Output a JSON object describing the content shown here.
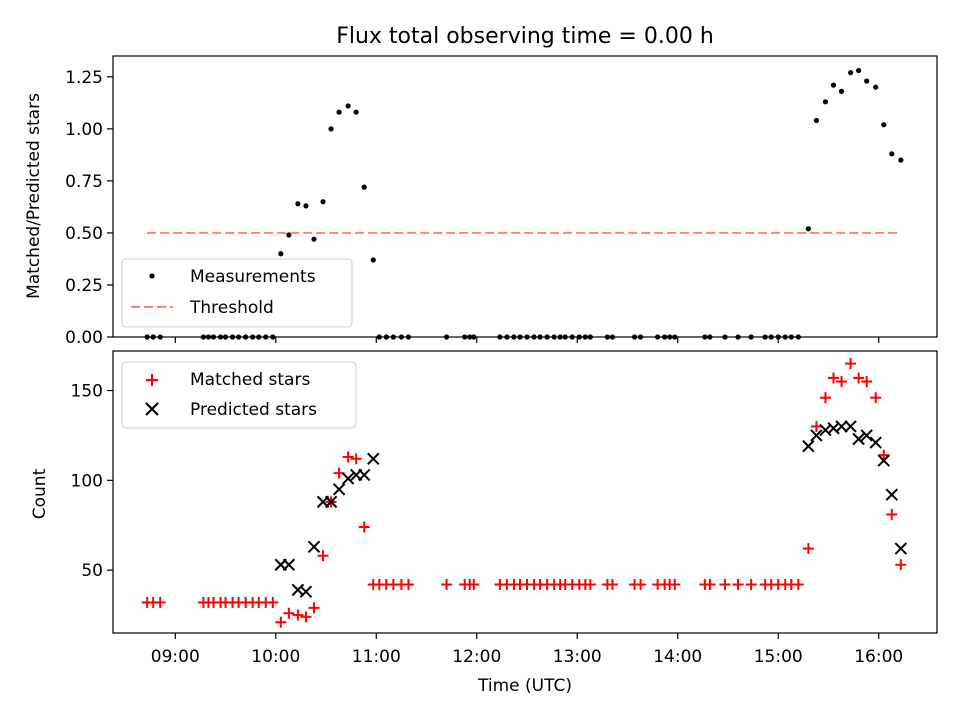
{
  "chart_data": [
    {
      "type": "scatter",
      "title": "Flux total observing time = 0.00 h",
      "xlabel": "",
      "ylabel": "Matched/Predicted stars",
      "xlim": [
        8.38,
        16.58
      ],
      "ylim": [
        0.0,
        1.35
      ],
      "x_ticks": [
        9,
        10,
        11,
        12,
        13,
        14,
        15,
        16
      ],
      "x_tick_labels": [
        "09:00",
        "10:00",
        "11:00",
        "12:00",
        "13:00",
        "14:00",
        "15:00",
        "16:00"
      ],
      "y_ticks": [
        0.0,
        0.25,
        0.5,
        0.75,
        1.0,
        1.25
      ],
      "y_tick_labels": [
        "0.00",
        "0.25",
        "0.50",
        "0.75",
        "1.00",
        "1.25"
      ],
      "legend": {
        "position": "lower-left",
        "entries": [
          "Measurements",
          "Threshold"
        ]
      },
      "series": [
        {
          "name": "Measurements",
          "color": "#000000",
          "marker": "dot",
          "points": [
            [
              8.72,
              0
            ],
            [
              8.78,
              0
            ],
            [
              8.85,
              0
            ],
            [
              9.28,
              0
            ],
            [
              9.33,
              0
            ],
            [
              9.38,
              0
            ],
            [
              9.45,
              0
            ],
            [
              9.5,
              0
            ],
            [
              9.57,
              0
            ],
            [
              9.63,
              0
            ],
            [
              9.7,
              0
            ],
            [
              9.77,
              0
            ],
            [
              9.83,
              0
            ],
            [
              9.9,
              0
            ],
            [
              9.97,
              0
            ],
            [
              10.05,
              0.4
            ],
            [
              10.13,
              0.49
            ],
            [
              10.22,
              0.64
            ],
            [
              10.3,
              0.63
            ],
            [
              10.38,
              0.47
            ],
            [
              10.47,
              0.65
            ],
            [
              10.55,
              1.0
            ],
            [
              10.63,
              1.08
            ],
            [
              10.72,
              1.11
            ],
            [
              10.8,
              1.08
            ],
            [
              10.88,
              0.72
            ],
            [
              10.97,
              0.37
            ],
            [
              11.03,
              0
            ],
            [
              11.1,
              0
            ],
            [
              11.17,
              0
            ],
            [
              11.25,
              0
            ],
            [
              11.32,
              0
            ],
            [
              11.7,
              0
            ],
            [
              11.88,
              0
            ],
            [
              11.93,
              0
            ],
            [
              11.97,
              0
            ],
            [
              12.23,
              0
            ],
            [
              12.3,
              0
            ],
            [
              12.37,
              0
            ],
            [
              12.43,
              0
            ],
            [
              12.5,
              0
            ],
            [
              12.57,
              0
            ],
            [
              12.63,
              0
            ],
            [
              12.7,
              0
            ],
            [
              12.77,
              0
            ],
            [
              12.83,
              0
            ],
            [
              12.88,
              0
            ],
            [
              12.95,
              0
            ],
            [
              13.02,
              0
            ],
            [
              13.08,
              0
            ],
            [
              13.13,
              0
            ],
            [
              13.3,
              0
            ],
            [
              13.35,
              0
            ],
            [
              13.57,
              0
            ],
            [
              13.63,
              0
            ],
            [
              13.8,
              0
            ],
            [
              13.87,
              0
            ],
            [
              13.92,
              0
            ],
            [
              13.97,
              0
            ],
            [
              14.27,
              0
            ],
            [
              14.32,
              0
            ],
            [
              14.47,
              0
            ],
            [
              14.6,
              0
            ],
            [
              14.73,
              0
            ],
            [
              14.87,
              0
            ],
            [
              14.93,
              0
            ],
            [
              15.0,
              0
            ],
            [
              15.07,
              0
            ],
            [
              15.13,
              0
            ],
            [
              15.2,
              0
            ],
            [
              15.3,
              0.52
            ],
            [
              15.38,
              1.04
            ],
            [
              15.47,
              1.13
            ],
            [
              15.55,
              1.21
            ],
            [
              15.63,
              1.18
            ],
            [
              15.72,
              1.27
            ],
            [
              15.8,
              1.28
            ],
            [
              15.88,
              1.23
            ],
            [
              15.97,
              1.2
            ],
            [
              16.05,
              1.02
            ],
            [
              16.13,
              0.88
            ],
            [
              16.22,
              0.85
            ]
          ]
        },
        {
          "name": "Threshold",
          "color": "#ff8080",
          "line_style": "dashed",
          "points": [
            [
              8.72,
              0.5
            ],
            [
              16.22,
              0.5
            ]
          ]
        }
      ]
    },
    {
      "type": "scatter",
      "title": "",
      "xlabel": "Time (UTC)",
      "ylabel": "Count",
      "xlim": [
        8.38,
        16.58
      ],
      "ylim": [
        15,
        172
      ],
      "x_ticks": [
        9,
        10,
        11,
        12,
        13,
        14,
        15,
        16
      ],
      "x_tick_labels": [
        "09:00",
        "10:00",
        "11:00",
        "12:00",
        "13:00",
        "14:00",
        "15:00",
        "16:00"
      ],
      "y_ticks": [
        50,
        100,
        150
      ],
      "y_tick_labels": [
        "50",
        "100",
        "150"
      ],
      "legend": {
        "position": "top-left",
        "entries": [
          "Matched stars",
          "Predicted stars"
        ]
      },
      "series": [
        {
          "name": "Matched stars",
          "color": "#ff0000",
          "marker": "plus",
          "points": [
            [
              8.72,
              32
            ],
            [
              8.78,
              32
            ],
            [
              8.85,
              32
            ],
            [
              9.28,
              32
            ],
            [
              9.33,
              32
            ],
            [
              9.38,
              32
            ],
            [
              9.45,
              32
            ],
            [
              9.5,
              32
            ],
            [
              9.57,
              32
            ],
            [
              9.63,
              32
            ],
            [
              9.7,
              32
            ],
            [
              9.77,
              32
            ],
            [
              9.83,
              32
            ],
            [
              9.9,
              32
            ],
            [
              9.97,
              32
            ],
            [
              10.05,
              21
            ],
            [
              10.13,
              26
            ],
            [
              10.22,
              25
            ],
            [
              10.3,
              24
            ],
            [
              10.38,
              29
            ],
            [
              10.47,
              58
            ],
            [
              10.55,
              88
            ],
            [
              10.63,
              104
            ],
            [
              10.72,
              113
            ],
            [
              10.8,
              112
            ],
            [
              10.88,
              74
            ],
            [
              10.97,
              42
            ],
            [
              11.03,
              42
            ],
            [
              11.1,
              42
            ],
            [
              11.17,
              42
            ],
            [
              11.25,
              42
            ],
            [
              11.32,
              42
            ],
            [
              11.7,
              42
            ],
            [
              11.88,
              42
            ],
            [
              11.93,
              42
            ],
            [
              11.97,
              42
            ],
            [
              12.23,
              42
            ],
            [
              12.3,
              42
            ],
            [
              12.37,
              42
            ],
            [
              12.43,
              42
            ],
            [
              12.5,
              42
            ],
            [
              12.57,
              42
            ],
            [
              12.63,
              42
            ],
            [
              12.7,
              42
            ],
            [
              12.77,
              42
            ],
            [
              12.83,
              42
            ],
            [
              12.88,
              42
            ],
            [
              12.95,
              42
            ],
            [
              13.02,
              42
            ],
            [
              13.08,
              42
            ],
            [
              13.13,
              42
            ],
            [
              13.3,
              42
            ],
            [
              13.35,
              42
            ],
            [
              13.57,
              42
            ],
            [
              13.63,
              42
            ],
            [
              13.8,
              42
            ],
            [
              13.87,
              42
            ],
            [
              13.92,
              42
            ],
            [
              13.97,
              42
            ],
            [
              14.27,
              42
            ],
            [
              14.32,
              42
            ],
            [
              14.47,
              42
            ],
            [
              14.6,
              42
            ],
            [
              14.73,
              42
            ],
            [
              14.87,
              42
            ],
            [
              14.93,
              42
            ],
            [
              15.0,
              42
            ],
            [
              15.07,
              42
            ],
            [
              15.13,
              42
            ],
            [
              15.2,
              42
            ],
            [
              15.3,
              62
            ],
            [
              15.38,
              130
            ],
            [
              15.47,
              146
            ],
            [
              15.55,
              157
            ],
            [
              15.63,
              155
            ],
            [
              15.72,
              165
            ],
            [
              15.8,
              157
            ],
            [
              15.88,
              155
            ],
            [
              15.97,
              146
            ],
            [
              16.05,
              114
            ],
            [
              16.13,
              81
            ],
            [
              16.22,
              53
            ]
          ]
        },
        {
          "name": "Predicted stars",
          "color": "#000000",
          "marker": "x",
          "points": [
            [
              10.05,
              53
            ],
            [
              10.13,
              53
            ],
            [
              10.22,
              39
            ],
            [
              10.3,
              38
            ],
            [
              10.38,
              63
            ],
            [
              10.47,
              88
            ],
            [
              10.55,
              88
            ],
            [
              10.63,
              95
            ],
            [
              10.72,
              101
            ],
            [
              10.8,
              103
            ],
            [
              10.88,
              103
            ],
            [
              10.97,
              112
            ],
            [
              15.3,
              119
            ],
            [
              15.38,
              125
            ],
            [
              15.47,
              128
            ],
            [
              15.55,
              129
            ],
            [
              15.63,
              130
            ],
            [
              15.72,
              130
            ],
            [
              15.8,
              123
            ],
            [
              15.88,
              125
            ],
            [
              15.97,
              121
            ],
            [
              16.05,
              111
            ],
            [
              16.13,
              92
            ],
            [
              16.22,
              62
            ]
          ]
        }
      ]
    }
  ]
}
